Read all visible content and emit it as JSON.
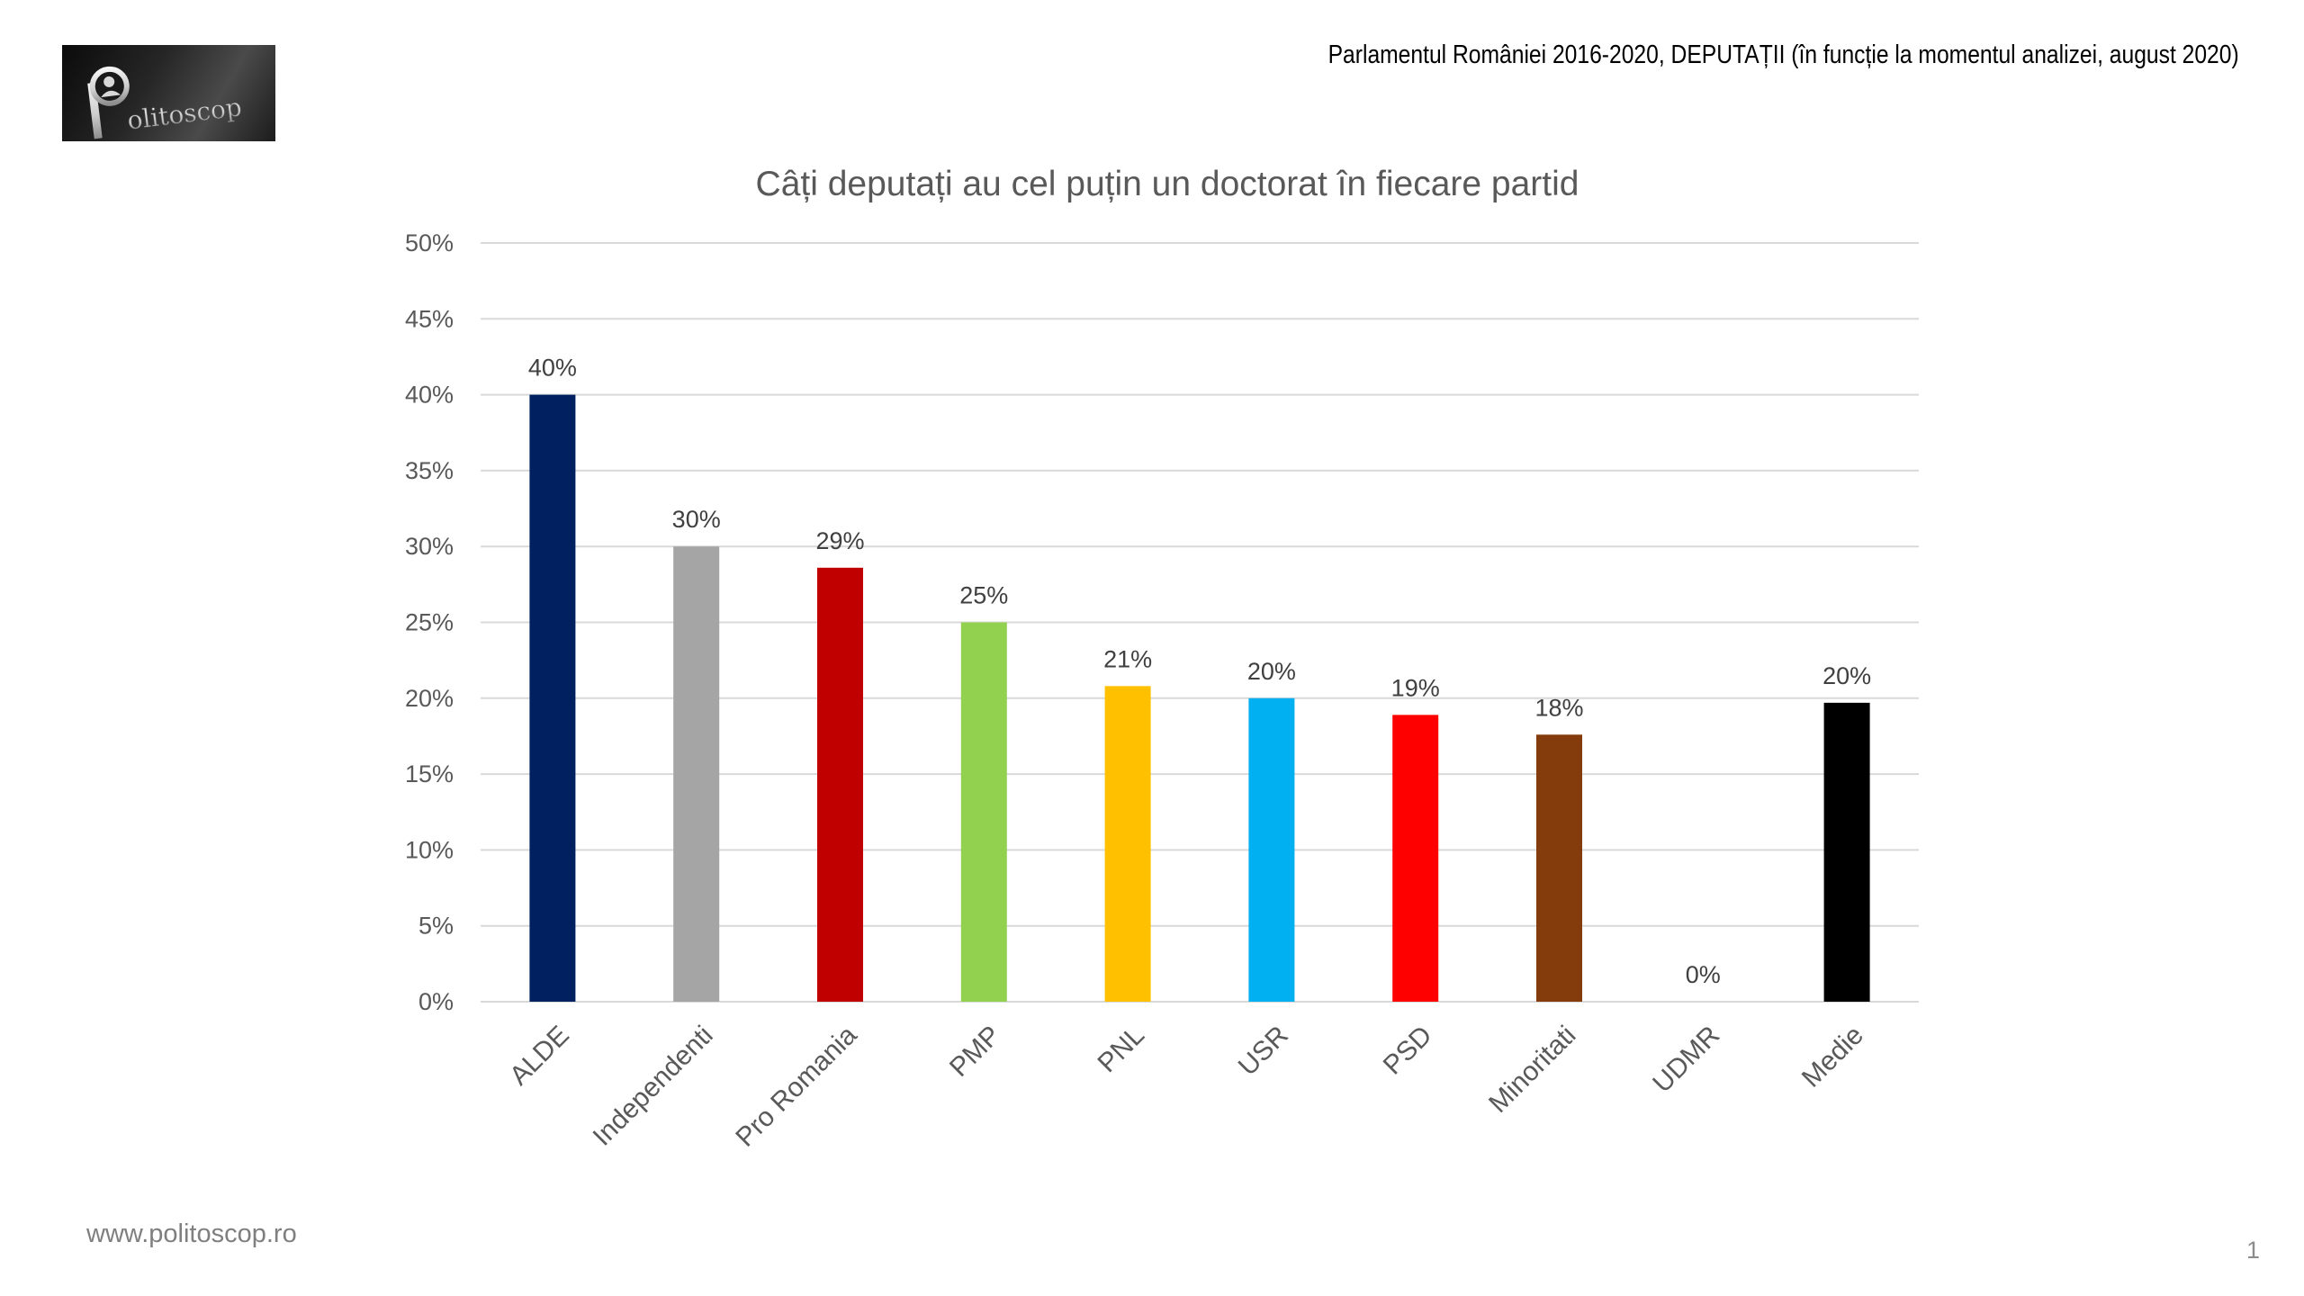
{
  "logo": {
    "text": "Politoscop"
  },
  "header": {
    "caption": "Parlamentul României 2016-2020, DEPUTAȚII (în funcție la momentul analizei, august 2020)"
  },
  "chart_data": {
    "type": "bar",
    "title": "Câți deputați au cel puțin un doctorat în fiecare partid",
    "xlabel": "",
    "ylabel": "",
    "categories": [
      "ALDE",
      "Independenti",
      "Pro Romania",
      "PMP",
      "PNL",
      "USR",
      "PSD",
      "Minoritati",
      "UDMR",
      "Medie"
    ],
    "values": [
      40,
      30,
      28.6,
      25,
      20.8,
      20,
      18.9,
      17.6,
      0,
      19.7
    ],
    "data_labels": [
      "40%",
      "30%",
      "29%",
      "25%",
      "21%",
      "20%",
      "19%",
      "18%",
      "0%",
      "20%"
    ],
    "bar_colors": [
      "#002060",
      "#A5A5A5",
      "#C00000",
      "#92D050",
      "#FFC000",
      "#00B0F0",
      "#FF0000",
      "#843C0C",
      null,
      "#000000"
    ],
    "unit": "%",
    "ylim": [
      0,
      50
    ],
    "yticks": [
      0,
      5,
      10,
      15,
      20,
      25,
      30,
      35,
      40,
      45,
      50
    ],
    "ytick_labels": [
      "0%",
      "5%",
      "10%",
      "15%",
      "20%",
      "25%",
      "30%",
      "35%",
      "40%",
      "45%",
      "50%"
    ],
    "grid": true,
    "legend": "none"
  },
  "footer": {
    "website": "www.politoscop.ro",
    "page_number": "1"
  }
}
